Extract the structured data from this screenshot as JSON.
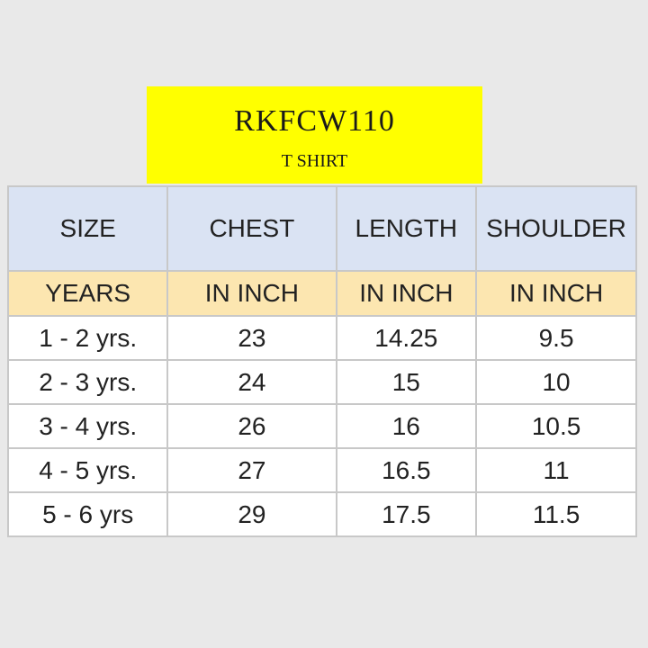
{
  "product": {
    "code": "RKFCW110",
    "type": "T SHIRT"
  },
  "table": {
    "headers": [
      "SIZE",
      "CHEST",
      "LENGTH",
      "SHOULDER"
    ],
    "units": [
      "YEARS",
      "IN INCH",
      "IN INCH",
      "IN INCH"
    ],
    "rows": [
      [
        "1 - 2 yrs.",
        "23",
        "14.25",
        "9.5"
      ],
      [
        "2 - 3 yrs.",
        "24",
        "15",
        "10"
      ],
      [
        "3 - 4 yrs.",
        "26",
        "16",
        "10.5"
      ],
      [
        "4 - 5 yrs.",
        "27",
        "16.5",
        "11"
      ],
      [
        "5 - 6 yrs",
        "29",
        "17.5",
        "11.5"
      ]
    ]
  },
  "colors": {
    "title_bg": "#ffff00",
    "header_bg": "#dae3f3",
    "units_bg": "#fce6b0",
    "row_bg": "#ffffff",
    "page_bg": "#e9e9e9"
  }
}
